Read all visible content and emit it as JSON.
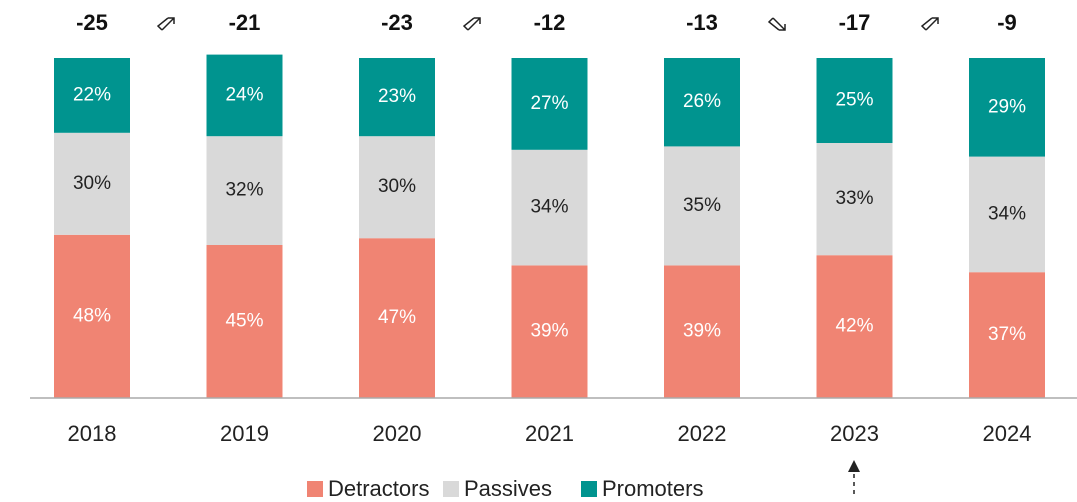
{
  "chart_data": {
    "type": "stacked-bar",
    "categories": [
      "2018",
      "2019",
      "2020",
      "2021",
      "2022",
      "2023",
      "2024"
    ],
    "series": [
      {
        "name": "Detractors",
        "color": "#f08473",
        "label_color": "#ffffff",
        "values": [
          48,
          45,
          47,
          39,
          39,
          42,
          37
        ],
        "value_labels": [
          "48%",
          "45%",
          "47%",
          "39%",
          "39%",
          "42%",
          "37%"
        ]
      },
      {
        "name": "Passives",
        "color": "#d9d9d9",
        "label_color": "#222222",
        "values": [
          30,
          32,
          30,
          34,
          35,
          33,
          34
        ],
        "value_labels": [
          "30%",
          "32%",
          "30%",
          "34%",
          "35%",
          "33%",
          "34%"
        ]
      },
      {
        "name": "Promoters",
        "color": "#00948f",
        "label_color": "#ffffff",
        "values": [
          22,
          24,
          23,
          27,
          26,
          25,
          29
        ],
        "value_labels": [
          "22%",
          "24%",
          "23%",
          "27%",
          "26%",
          "25%",
          "29%"
        ]
      }
    ],
    "annotations": [
      -25,
      -21,
      -23,
      -12,
      -13,
      -17,
      -9
    ],
    "ylim": [
      0,
      100
    ]
  }
}
